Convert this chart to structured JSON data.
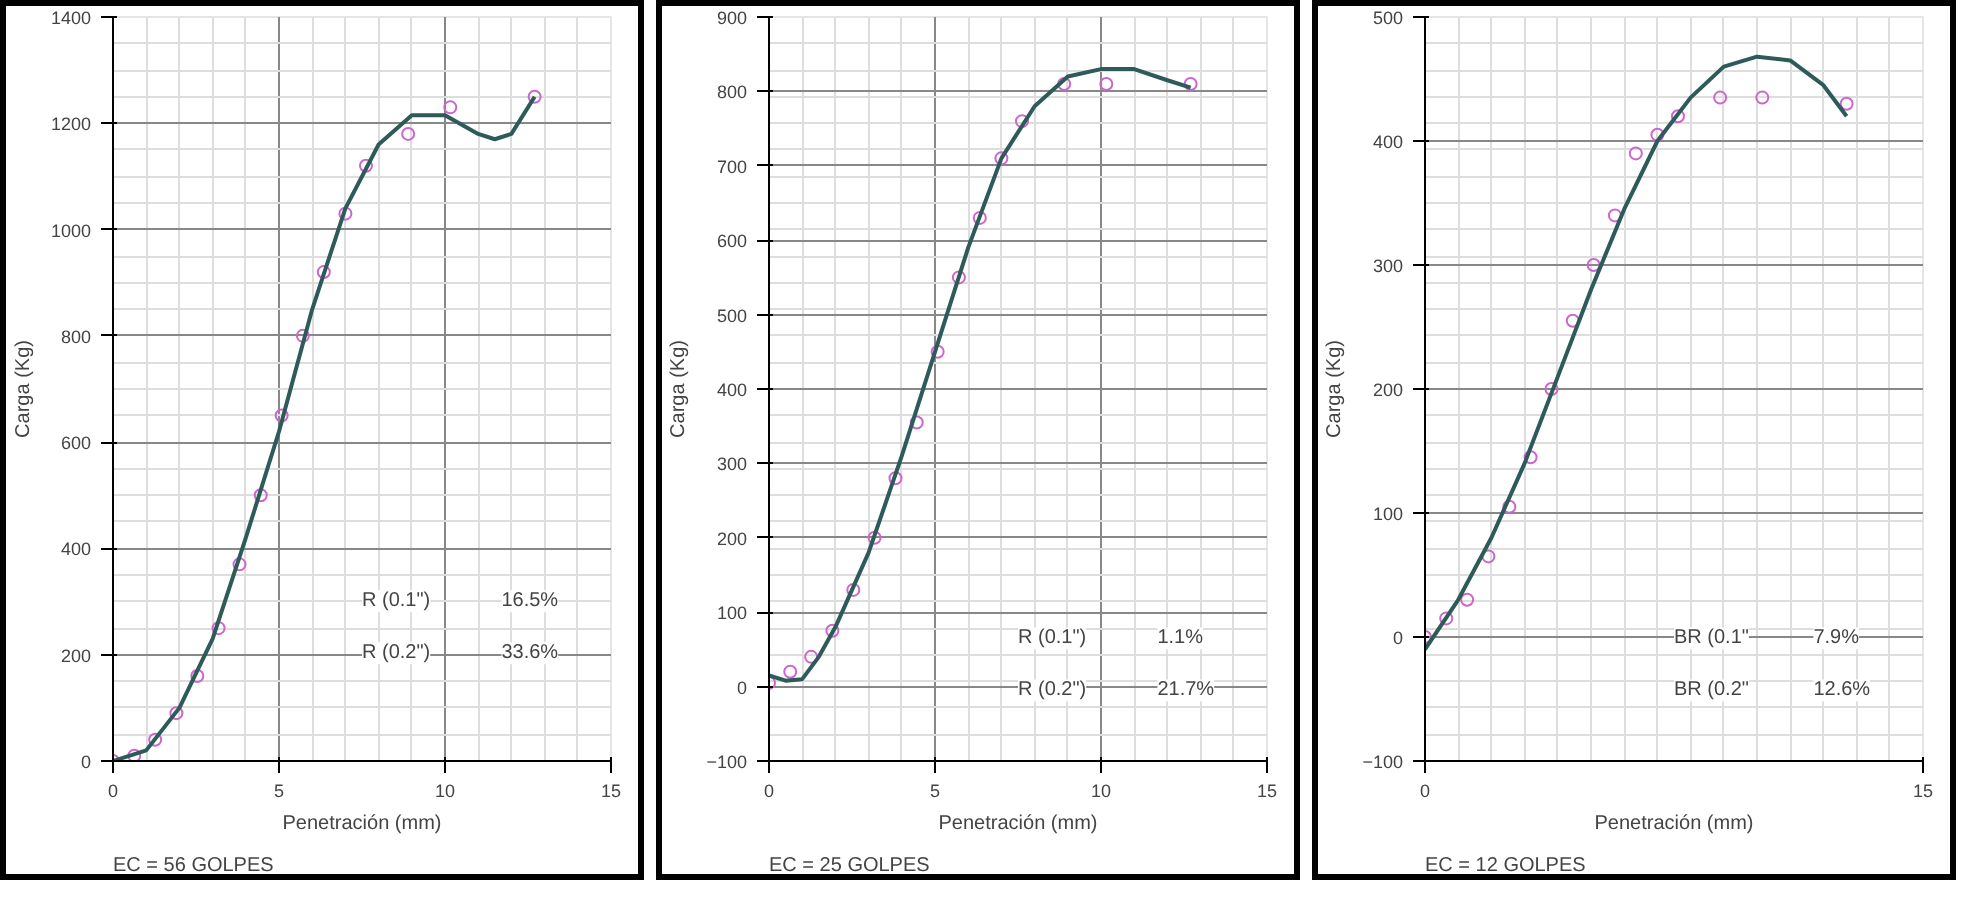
{
  "chart_data": [
    {
      "type": "scatter",
      "subtitle": "EC = 56 GOLPES",
      "xlabel": "Penetración (mm)",
      "ylabel": "Carga (Kg)",
      "xlim": [
        0,
        15
      ],
      "ylim": [
        0,
        1400
      ],
      "xticks": [
        0,
        5,
        10,
        15
      ],
      "yticks": [
        0,
        200,
        400,
        600,
        800,
        1000,
        1200,
        1400
      ],
      "grid": true,
      "series": [
        {
          "marker": "circle",
          "color": "#cc66cc",
          "x": [
            0,
            0.64,
            1.27,
            1.91,
            2.54,
            3.18,
            3.81,
            4.45,
            5.08,
            5.72,
            6.35,
            7.0,
            7.62,
            8.89,
            10.16,
            12.7
          ],
          "values": [
            0,
            10,
            40,
            90,
            160,
            250,
            370,
            500,
            650,
            800,
            920,
            1030,
            1120,
            1180,
            1230,
            1250
          ]
        },
        {
          "type": "line",
          "color": "#2e5a5a",
          "x": [
            0,
            1,
            2,
            3,
            4,
            5,
            6,
            7,
            8,
            9,
            10,
            11,
            11.5,
            12,
            12.7
          ],
          "values": [
            0,
            20,
            100,
            230,
            420,
            620,
            850,
            1040,
            1160,
            1215,
            1215,
            1180,
            1170,
            1180,
            1250
          ]
        }
      ],
      "annotations": [
        "R (0.1\")",
        "16.5%",
        "R (0.2\")",
        "33.6%"
      ]
    },
    {
      "type": "scatter",
      "subtitle": "EC = 25 GOLPES",
      "xlabel": "Penetración (mm)",
      "ylabel": "Carga (Kg)",
      "xlim": [
        0,
        15
      ],
      "ylim": [
        -100,
        900
      ],
      "xticks": [
        0,
        5,
        10,
        15
      ],
      "yticks": [
        -100,
        0,
        100,
        200,
        300,
        400,
        500,
        600,
        700,
        800,
        900
      ],
      "grid": true,
      "series": [
        {
          "marker": "circle",
          "color": "#cc66cc",
          "x": [
            0,
            0.64,
            1.27,
            1.91,
            2.54,
            3.18,
            3.81,
            4.45,
            5.08,
            5.72,
            6.35,
            7.0,
            7.62,
            8.89,
            10.16,
            12.7
          ],
          "values": [
            5,
            20,
            40,
            75,
            130,
            200,
            280,
            355,
            450,
            550,
            630,
            710,
            760,
            810,
            810,
            810
          ]
        },
        {
          "type": "line",
          "color": "#2e5a5a",
          "x": [
            0,
            0.5,
            1,
            1.5,
            2,
            3,
            4,
            5,
            6,
            7,
            8,
            9,
            10,
            11,
            12,
            12.7
          ],
          "values": [
            15,
            8,
            10,
            40,
            80,
            180,
            310,
            450,
            590,
            710,
            780,
            820,
            830,
            830,
            815,
            805
          ]
        }
      ],
      "annotations": [
        "R (0.1\")",
        "1.1%",
        "R (0.2\")",
        "21.7%"
      ]
    },
    {
      "type": "scatter",
      "subtitle": "EC = 12 GOLPES",
      "xlabel": "Penetración (mm)",
      "ylabel": "Carga (Kg)",
      "xlim": [
        0,
        15
      ],
      "ylim": [
        -100,
        500
      ],
      "xticks": [
        0,
        15
      ],
      "yticks": [
        -100,
        0,
        100,
        200,
        300,
        400,
        500
      ],
      "grid": true,
      "series": [
        {
          "marker": "circle",
          "color": "#cc66cc",
          "x": [
            0,
            0.64,
            1.27,
            1.91,
            2.54,
            3.18,
            3.81,
            4.45,
            5.08,
            5.72,
            6.35,
            7.0,
            7.62,
            8.89,
            10.16,
            12.7
          ],
          "values": [
            0,
            15,
            30,
            65,
            105,
            145,
            200,
            255,
            300,
            340,
            390,
            405,
            420,
            435,
            435,
            430
          ]
        },
        {
          "type": "line",
          "color": "#2e5a5a",
          "x": [
            0,
            1,
            2,
            3,
            4,
            5,
            6,
            7,
            8,
            9,
            10,
            11,
            12,
            12.7
          ],
          "values": [
            -10,
            30,
            80,
            140,
            210,
            280,
            345,
            400,
            435,
            460,
            468,
            465,
            445,
            420
          ]
        }
      ],
      "annotations": [
        "BR (0.1\"",
        "7.9%",
        "BR (0.2\"",
        "12.6%"
      ]
    }
  ]
}
